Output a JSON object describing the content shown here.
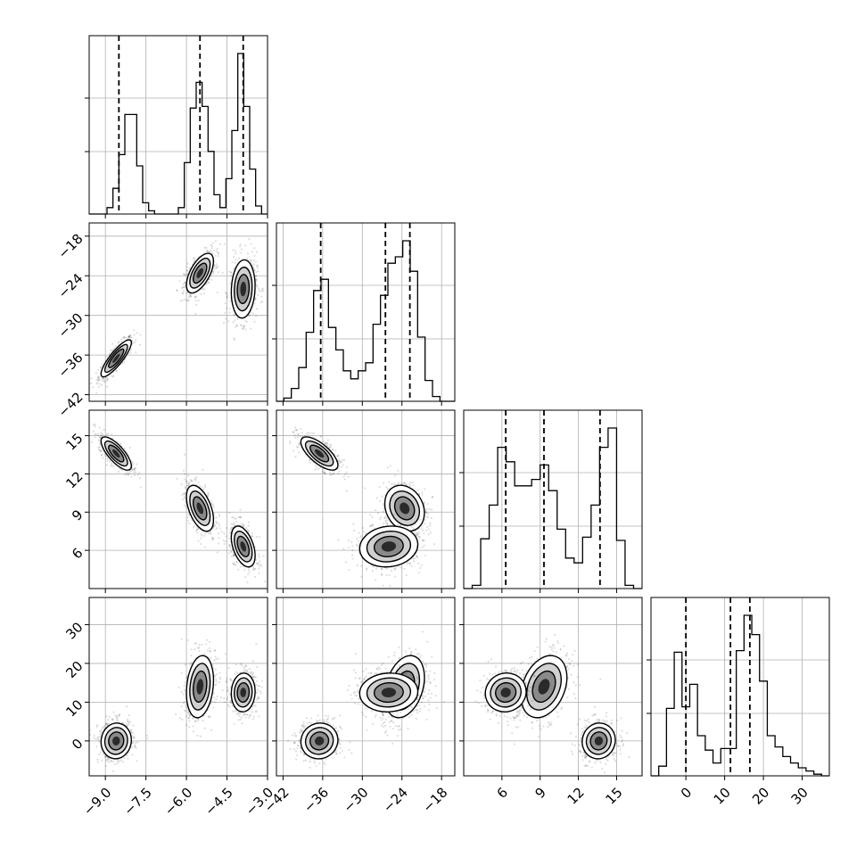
{
  "chart_data": {
    "type": "corner",
    "dimensions": [
      {
        "range": [
          -9.6,
          -3.0
        ],
        "ticks": [
          "-9.0",
          "-7.5",
          "-6.0",
          "-4.5",
          "-3.0"
        ],
        "tick_values": [
          -9.0,
          -7.5,
          -6.0,
          -4.5,
          -3.0
        ],
        "quantiles": [
          -8.5,
          -5.5,
          -3.9
        ]
      },
      {
        "range": [
          -43,
          -16
        ],
        "ticks": [
          "-42",
          "-36",
          "-30",
          "-24",
          "-18"
        ],
        "tick_values": [
          -42,
          -36,
          -30,
          -24,
          -18
        ],
        "quantiles": [
          -36.3,
          -26.5,
          -22.8
        ]
      },
      {
        "range": [
          3,
          17
        ],
        "ticks": [
          "6",
          "9",
          "12",
          "15"
        ],
        "tick_values": [
          6,
          9,
          12,
          15
        ],
        "quantiles": [
          6.3,
          9.3,
          13.7
        ]
      },
      {
        "range": [
          -9,
          37
        ],
        "ticks": [
          "0",
          "10",
          "20",
          "30"
        ],
        "tick_values": [
          0,
          10,
          20,
          30
        ],
        "quantiles": [
          0.0,
          11.5,
          16.5
        ]
      }
    ],
    "histograms": [
      [
        0,
        0,
        0,
        0.04,
        0.16,
        0.37,
        0.62,
        0.62,
        0.3,
        0.07,
        0.02,
        0,
        0,
        0,
        0,
        0.04,
        0.32,
        0.66,
        0.82,
        0.67,
        0.39,
        0.12,
        0.04,
        0.22,
        0.52,
        1.0,
        0.67,
        0.28,
        0.05,
        0
      ],
      [
        0.0,
        0.02,
        0.08,
        0.21,
        0.43,
        0.69,
        0.76,
        0.46,
        0.32,
        0.19,
        0.14,
        0.19,
        0.24,
        0.48,
        0.66,
        0.86,
        0.9,
        1.0,
        0.81,
        0.4,
        0.13,
        0.03,
        0.0,
        0.0
      ],
      [
        0.0,
        0.02,
        0.31,
        0.52,
        0.88,
        0.79,
        0.64,
        0.64,
        0.68,
        0.77,
        0.61,
        0.37,
        0.19,
        0.16,
        0.32,
        0.52,
        0.88,
        1.0,
        0.3,
        0.02,
        0.0
      ],
      [
        0.0,
        0.06,
        0.42,
        0.77,
        0.43,
        0.57,
        0.25,
        0.16,
        0.08,
        0.17,
        0.17,
        0.78,
        1.0,
        0.88,
        0.59,
        0.25,
        0.18,
        0.12,
        0.08,
        0.05,
        0.03,
        0.01,
        0.0
      ]
    ],
    "clusters": [
      {
        "mean": [
          -8.6,
          -36.5,
          13.6,
          0.0
        ],
        "sd": [
          0.28,
          1.4,
          0.65,
          2.3
        ],
        "corr": [
          [
            1,
            0.85,
            -0.75,
            0.05
          ],
          [
            0.85,
            1,
            -0.7,
            0.05
          ],
          [
            -0.75,
            -0.7,
            1,
            0.05
          ],
          [
            0.05,
            0.05,
            0.05,
            1
          ]
        ]
      },
      {
        "mean": [
          -5.5,
          -23.6,
          9.3,
          14.0
        ],
        "sd": [
          0.25,
          1.5,
          0.9,
          4.0
        ],
        "corr": [
          [
            1,
            0.6,
            -0.5,
            0.2
          ],
          [
            0.6,
            1,
            -0.2,
            0.3
          ],
          [
            -0.5,
            -0.2,
            1,
            0.3
          ],
          [
            0.2,
            0.3,
            0.3,
            1
          ]
        ]
      },
      {
        "mean": [
          -3.9,
          -26.0,
          6.3,
          12.5
        ],
        "sd": [
          0.22,
          2.2,
          0.8,
          2.5
        ],
        "corr": [
          [
            1,
            0.1,
            -0.45,
            0.05
          ],
          [
            0.1,
            1,
            0.1,
            0.05
          ],
          [
            -0.45,
            0.1,
            1,
            0.05
          ],
          [
            0.05,
            0.05,
            0.05,
            1
          ]
        ]
      }
    ],
    "grid": true,
    "xlabel": "",
    "ylabel": "",
    "title": ""
  }
}
